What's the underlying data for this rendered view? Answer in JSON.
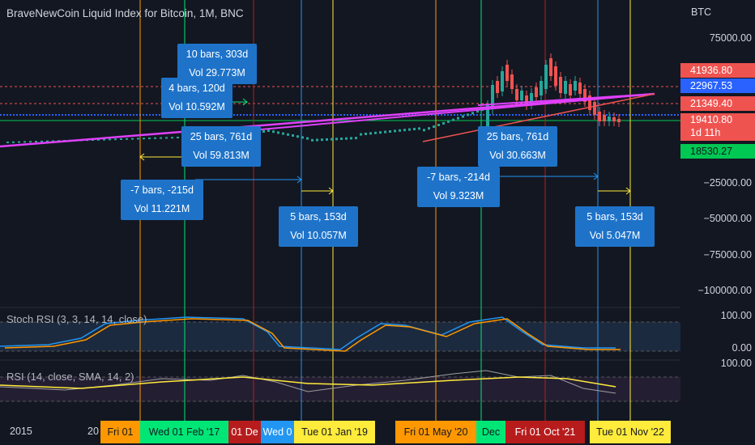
{
  "title": "BraveNewCoin Liquid Index for Bitcoin, 1M, BNC",
  "currency": "BTC",
  "y_axis_ticks": [
    "75000.00",
    "−25000.00",
    "−50000.00",
    "−75000.00",
    "−100000.00"
  ],
  "price_tags": {
    "high": "41936.80",
    "mid": "22967.53",
    "last": "21349.40",
    "current": "19410.80",
    "countdown": "1d 11h",
    "low": "18530.27"
  },
  "colors": {
    "background": "#131722",
    "candle_up": "#26a69a",
    "candle_down": "#ef5350",
    "trendline": "#e040fb",
    "measure_box": "#1e73c9"
  },
  "measure_boxes": [
    {
      "line1": "10 bars, 303d",
      "line2": "Vol 29.773M"
    },
    {
      "line1": "4 bars, 120d",
      "line2": "Vol 10.592M"
    },
    {
      "line1": "25 bars, 761d",
      "line2": "Vol 59.813M"
    },
    {
      "line1": "-7 bars, -215d",
      "line2": "Vol 11.221M"
    },
    {
      "line1": "5 bars, 153d",
      "line2": "Vol 10.057M"
    },
    {
      "line1": "25 bars, 761d",
      "line2": "Vol 30.663M"
    },
    {
      "line1": "-7 bars, -214d",
      "line2": "Vol 9.323M"
    },
    {
      "line1": "5 bars, 153d",
      "line2": "Vol 5.047M"
    }
  ],
  "stoch_rsi": {
    "label": "Stoch RSI (3, 3, 14, 14, close)",
    "ticks": [
      "100.00",
      "0.00"
    ]
  },
  "rsi": {
    "label": "RSI (14, close, SMA, 14, 2)",
    "ticks": [
      "100.00"
    ]
  },
  "x_axis": {
    "year_label": "2015",
    "partial_label": "20",
    "date_labels": [
      {
        "text": "Fri 01 ",
        "color": "#ff9800"
      },
      {
        "text": "Wed 01 Feb '17",
        "color": "#00e676"
      },
      {
        "text": "01 De",
        "color": "#b71c1c"
      },
      {
        "text": "Wed 0",
        "color": "#2196f3"
      },
      {
        "text": "Tue 01 Jan '19",
        "color": "#ffeb3b"
      },
      {
        "text": "Fri 01 May '20",
        "color": "#ff9800"
      },
      {
        "text": "Dec",
        "color": "#00e676"
      },
      {
        "text": "Fri 01 Oct '21",
        "color": "#b71c1c"
      },
      {
        "text": "Tue 01 Nov '22",
        "color": "#ffeb3b"
      }
    ]
  }
}
